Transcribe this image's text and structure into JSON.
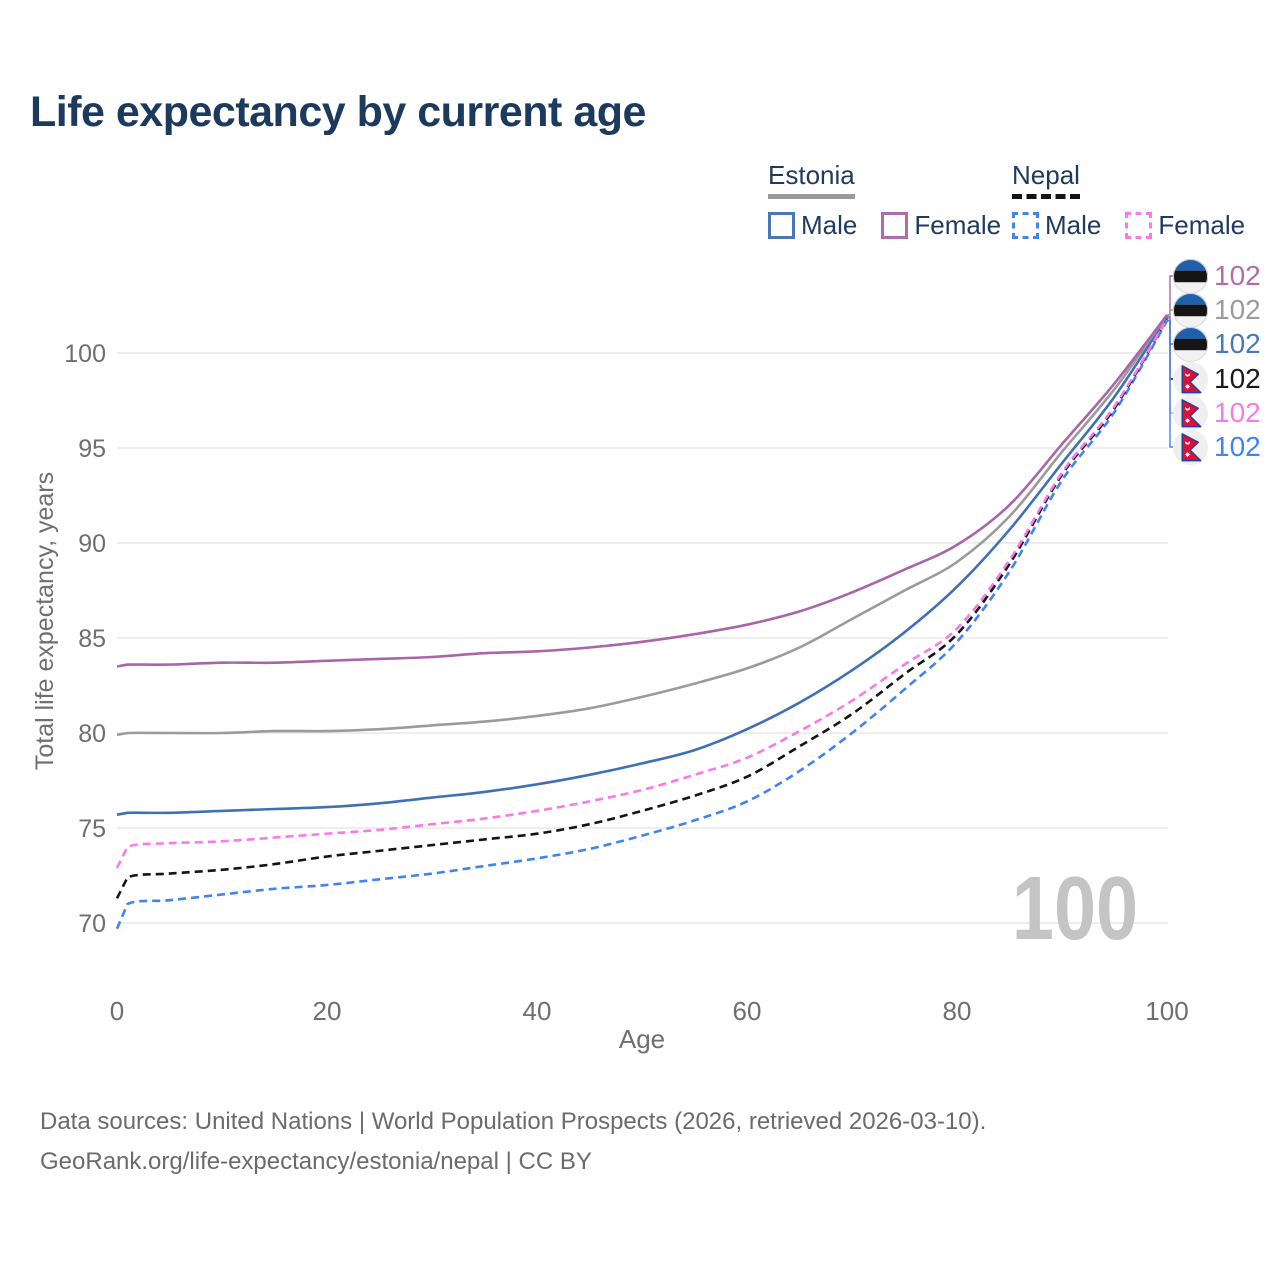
{
  "title": "Life expectancy by current age",
  "watermark": "100",
  "legend": {
    "groups": [
      {
        "name": "Estonia",
        "underline_style": "solid",
        "underline_color": "#9a9a9a",
        "items": [
          {
            "label": "Male",
            "color": "#4a77b8",
            "dashed": false
          },
          {
            "label": "Female",
            "color": "#b16bad",
            "dashed": false
          }
        ]
      },
      {
        "name": "Nepal",
        "underline_style": "dashed",
        "underline_color": "#141414",
        "items": [
          {
            "label": "Male",
            "color": "#4084f2",
            "dashed": true
          },
          {
            "label": "Female",
            "color": "#fb78e8",
            "dashed": true
          }
        ]
      }
    ]
  },
  "axes": {
    "x": {
      "label": "Age",
      "ticks": [
        0,
        20,
        40,
        60,
        80,
        100
      ],
      "range": [
        0,
        100
      ]
    },
    "y": {
      "label": "Total life expectancy, years",
      "ticks": [
        70,
        75,
        80,
        85,
        90,
        95,
        100
      ],
      "range": [
        70,
        100
      ]
    }
  },
  "footer": {
    "line1": "Data sources: United Nations | World Population Prospects (2026, retrieved 2026-03-10).",
    "line2": "GeoRank.org/life-expectancy/estonia/nepal | CC BY"
  },
  "chart_data": {
    "type": "line",
    "xlabel": "Age",
    "ylabel": "Total life expectancy, years",
    "xlim": [
      0,
      100
    ],
    "ylim": [
      70,
      102
    ],
    "grid": "horizontal",
    "x": [
      0,
      1,
      5,
      10,
      15,
      20,
      25,
      30,
      35,
      40,
      45,
      50,
      55,
      60,
      65,
      70,
      75,
      80,
      85,
      90,
      95,
      100
    ],
    "series": [
      {
        "name": "Estonia Female",
        "key": "estonia-female",
        "flag": "estonia",
        "color": "#a965a8",
        "label_color": "#b26bac",
        "dashed": false,
        "end_label": "102",
        "values": [
          83.5,
          83.6,
          83.6,
          83.7,
          83.7,
          83.8,
          83.9,
          84.0,
          84.2,
          84.3,
          84.5,
          84.8,
          85.2,
          85.7,
          86.4,
          87.4,
          88.6,
          89.9,
          92.0,
          95.2,
          98.4,
          102.0
        ]
      },
      {
        "name": "Estonia",
        "key": "estonia-total",
        "flag": "estonia",
        "color": "#9b9b9b",
        "label_color": "#9b9b9b",
        "dashed": false,
        "end_label": "102",
        "values": [
          79.9,
          80.0,
          80.0,
          80.0,
          80.1,
          80.1,
          80.2,
          80.4,
          80.6,
          80.9,
          81.3,
          81.9,
          82.6,
          83.4,
          84.5,
          86.0,
          87.5,
          89.0,
          91.4,
          94.8,
          98.1,
          102.0
        ]
      },
      {
        "name": "Estonia Male",
        "key": "estonia-male",
        "flag": "estonia",
        "color": "#3f70b5",
        "label_color": "#4a77b8",
        "dashed": false,
        "end_label": "102",
        "values": [
          75.7,
          75.8,
          75.8,
          75.9,
          76.0,
          76.1,
          76.3,
          76.6,
          76.9,
          77.3,
          77.8,
          78.4,
          79.1,
          80.2,
          81.6,
          83.3,
          85.3,
          87.7,
          90.7,
          94.2,
          97.7,
          101.9
        ]
      },
      {
        "name": "Nepal",
        "key": "nepal-total",
        "flag": "nepal",
        "color": "#141414",
        "label_color": "#1a1a1a",
        "dashed": true,
        "end_label": "102",
        "values": [
          71.3,
          72.4,
          72.6,
          72.8,
          73.1,
          73.5,
          73.8,
          74.1,
          74.4,
          74.7,
          75.2,
          75.9,
          76.7,
          77.7,
          79.3,
          81.0,
          83.1,
          85.2,
          88.9,
          93.6,
          97.1,
          101.8
        ]
      },
      {
        "name": "Nepal Female",
        "key": "nepal-female",
        "flag": "nepal",
        "color": "#fb78e8",
        "label_color": "#fb78e8",
        "dashed": true,
        "end_label": "102",
        "values": [
          72.9,
          74.0,
          74.2,
          74.3,
          74.5,
          74.7,
          74.9,
          75.2,
          75.5,
          75.9,
          76.4,
          77.0,
          77.8,
          78.7,
          80.1,
          81.7,
          83.6,
          85.5,
          89.1,
          93.7,
          97.2,
          101.8
        ]
      },
      {
        "name": "Nepal Male",
        "key": "nepal-male",
        "flag": "nepal",
        "color": "#4084f2",
        "label_color": "#4084f2",
        "dashed": true,
        "end_label": "102",
        "values": [
          69.7,
          71.0,
          71.2,
          71.5,
          71.8,
          72.0,
          72.3,
          72.6,
          73.0,
          73.4,
          73.9,
          74.6,
          75.4,
          76.4,
          78.0,
          80.0,
          82.3,
          84.8,
          88.5,
          93.3,
          96.9,
          101.7
        ]
      }
    ]
  }
}
